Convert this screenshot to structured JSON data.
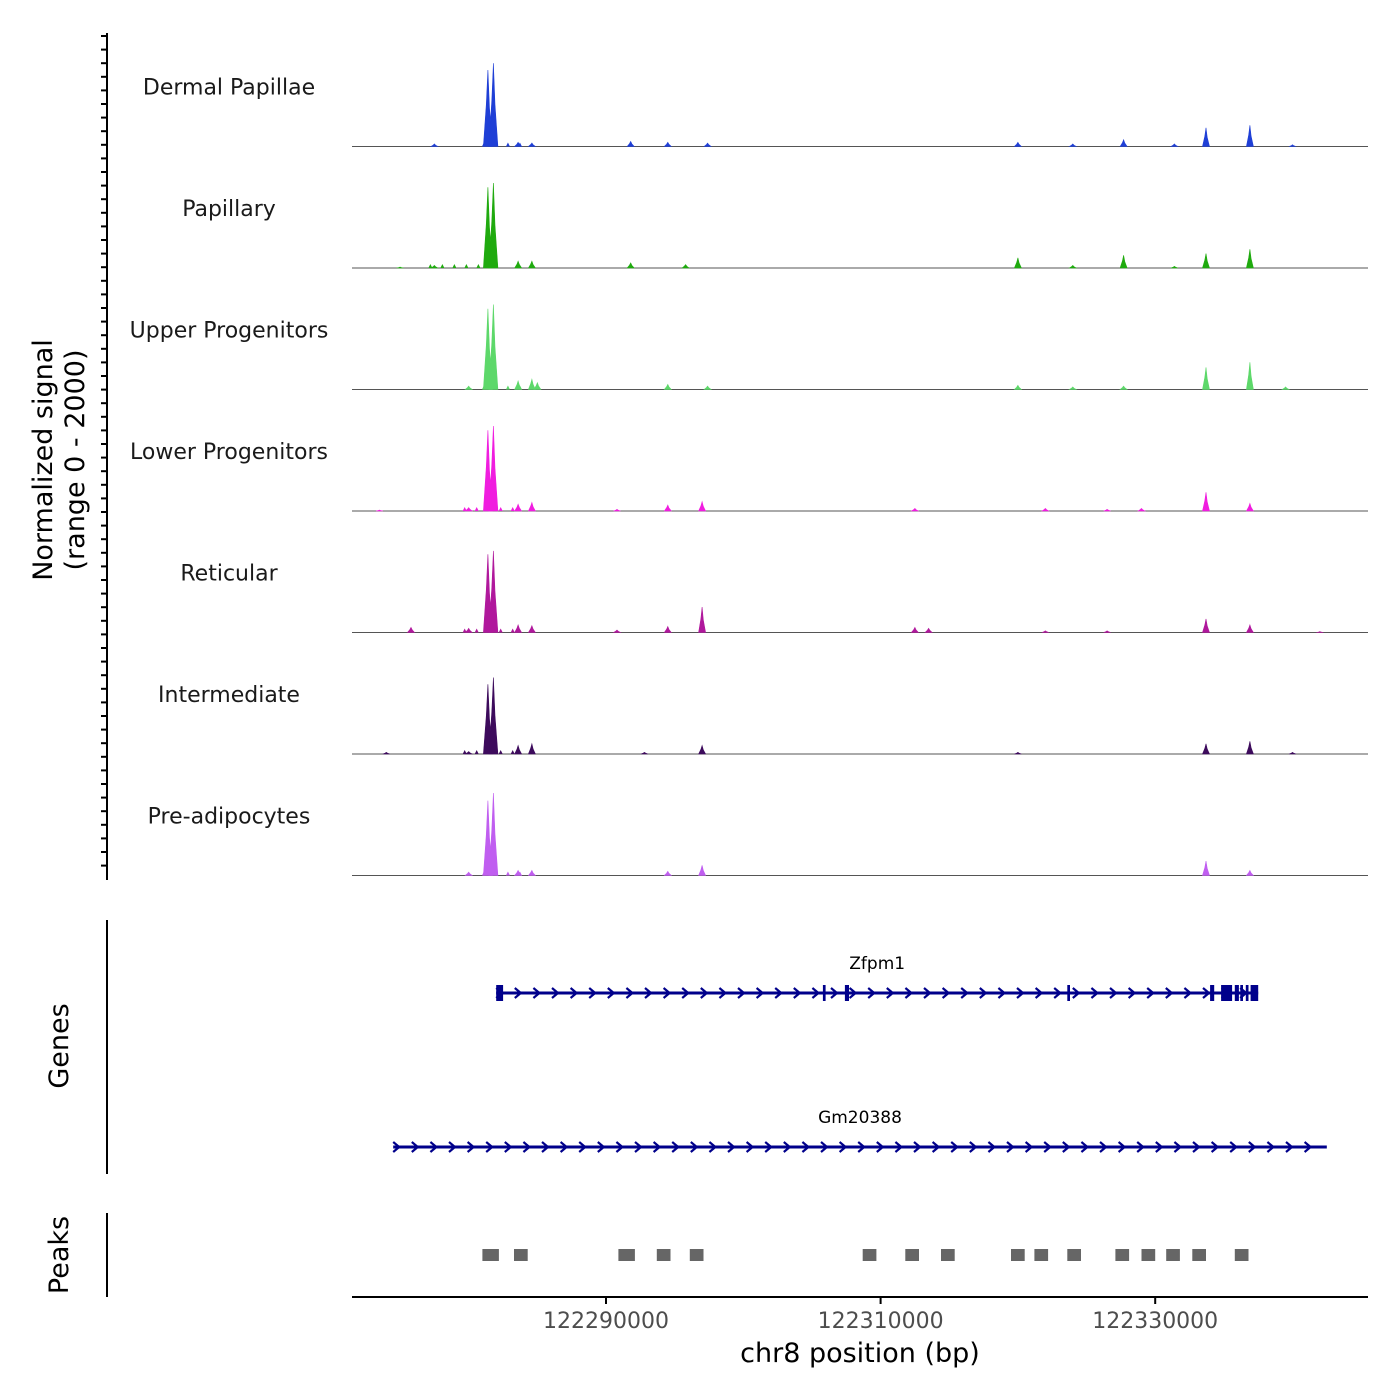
{
  "chart_data": {
    "type": "area",
    "title": "",
    "xlabel": "chr8 position (bp)",
    "ylabel_line1": "Normalized signal",
    "ylabel_line2": "(range 0 - 2000)",
    "y_range": [
      0,
      2000
    ],
    "x_range": [
      122271500,
      122345500
    ],
    "x_ticks": [
      122290000,
      122310000,
      122330000
    ],
    "x_tick_labels": [
      "122290000",
      "122310000",
      "122330000"
    ],
    "tracks": [
      {
        "name": "Dermal Papillae",
        "color": "#1f3fd6",
        "peaks": [
          [
            122277500,
            0.03
          ],
          [
            122281400,
            0.9
          ],
          [
            122281800,
            0.98
          ],
          [
            122283600,
            0.05
          ],
          [
            122284600,
            0.04
          ],
          [
            122291800,
            0.06
          ],
          [
            122294500,
            0.05
          ],
          [
            122297400,
            0.04
          ],
          [
            122320000,
            0.05
          ],
          [
            122324000,
            0.03
          ],
          [
            122327700,
            0.08
          ],
          [
            122331400,
            0.03
          ],
          [
            122333700,
            0.22
          ],
          [
            122336900,
            0.25
          ],
          [
            122340000,
            0.02
          ]
        ]
      },
      {
        "name": "Papillary",
        "color": "#1faa0e",
        "peaks": [
          [
            122275000,
            0.01
          ],
          [
            122277500,
            0.03
          ],
          [
            122281400,
            0.95
          ],
          [
            122281800,
            1.0
          ],
          [
            122283600,
            0.08
          ],
          [
            122284600,
            0.08
          ],
          [
            122291800,
            0.06
          ],
          [
            122295800,
            0.04
          ],
          [
            122320000,
            0.12
          ],
          [
            122324000,
            0.03
          ],
          [
            122327700,
            0.15
          ],
          [
            122331400,
            0.02
          ],
          [
            122333700,
            0.17
          ],
          [
            122336900,
            0.22
          ]
        ]
      },
      {
        "name": "Upper Progenitors",
        "color": "#5dd86a",
        "peaks": [
          [
            122280000,
            0.04
          ],
          [
            122281400,
            0.95
          ],
          [
            122281800,
            1.0
          ],
          [
            122283600,
            0.1
          ],
          [
            122284600,
            0.12
          ],
          [
            122285000,
            0.08
          ],
          [
            122294500,
            0.06
          ],
          [
            122297400,
            0.04
          ],
          [
            122320000,
            0.05
          ],
          [
            122324000,
            0.03
          ],
          [
            122327700,
            0.04
          ],
          [
            122333700,
            0.26
          ],
          [
            122336900,
            0.32
          ],
          [
            122339500,
            0.03
          ]
        ]
      },
      {
        "name": "Lower Progenitors",
        "color": "#f01ddf",
        "peaks": [
          [
            122273500,
            0.01
          ],
          [
            122280000,
            0.04
          ],
          [
            122281400,
            0.95
          ],
          [
            122281800,
            1.0
          ],
          [
            122283600,
            0.08
          ],
          [
            122284600,
            0.1
          ],
          [
            122290800,
            0.02
          ],
          [
            122294500,
            0.07
          ],
          [
            122297000,
            0.11
          ],
          [
            122312500,
            0.03
          ],
          [
            122322000,
            0.03
          ],
          [
            122326500,
            0.02
          ],
          [
            122329000,
            0.03
          ],
          [
            122333700,
            0.22
          ],
          [
            122336900,
            0.09
          ]
        ]
      },
      {
        "name": "Reticular",
        "color": "#b0189c",
        "peaks": [
          [
            122275800,
            0.06
          ],
          [
            122280000,
            0.05
          ],
          [
            122281400,
            0.92
          ],
          [
            122281800,
            0.96
          ],
          [
            122283600,
            0.09
          ],
          [
            122284600,
            0.08
          ],
          [
            122290800,
            0.03
          ],
          [
            122294500,
            0.07
          ],
          [
            122297000,
            0.3
          ],
          [
            122312500,
            0.06
          ],
          [
            122313500,
            0.05
          ],
          [
            122322000,
            0.02
          ],
          [
            122326500,
            0.02
          ],
          [
            122333700,
            0.16
          ],
          [
            122336900,
            0.09
          ],
          [
            122342000,
            0.01
          ]
        ]
      },
      {
        "name": "Intermediate",
        "color": "#3d0b5c",
        "peaks": [
          [
            122274000,
            0.02
          ],
          [
            122280000,
            0.03
          ],
          [
            122281400,
            0.82
          ],
          [
            122281800,
            0.9
          ],
          [
            122283600,
            0.1
          ],
          [
            122284600,
            0.12
          ],
          [
            122292800,
            0.02
          ],
          [
            122297000,
            0.1
          ],
          [
            122320000,
            0.02
          ],
          [
            122333700,
            0.12
          ],
          [
            122336900,
            0.15
          ],
          [
            122340000,
            0.02
          ]
        ]
      },
      {
        "name": "Pre-adipocytes",
        "color": "#c05ef0",
        "peaks": [
          [
            122280000,
            0.04
          ],
          [
            122281400,
            0.88
          ],
          [
            122281800,
            0.97
          ],
          [
            122283600,
            0.06
          ],
          [
            122284600,
            0.06
          ],
          [
            122294500,
            0.05
          ],
          [
            122297000,
            0.12
          ],
          [
            122333700,
            0.17
          ],
          [
            122336900,
            0.06
          ]
        ]
      }
    ],
    "genes": [
      {
        "name": "Zfpm1",
        "start": 122282000,
        "end": 122337500,
        "strand": "+",
        "exons": [
          [
            122282000,
            122282500
          ],
          [
            122305800,
            122306000
          ],
          [
            122307400,
            122307700
          ],
          [
            122323600,
            122323800
          ],
          [
            122334000,
            122334300
          ],
          [
            122334800,
            122335600
          ],
          [
            122335800,
            122336100
          ],
          [
            122336200,
            122336400
          ],
          [
            122336600,
            122336800
          ],
          [
            122336950,
            122337500
          ]
        ]
      },
      {
        "name": "Gm20388",
        "start": 122274500,
        "end": 122342500,
        "strand": "+",
        "exons": []
      }
    ],
    "peaks": [
      [
        122281000,
        122282200
      ],
      [
        122283300,
        122284300
      ],
      [
        122290900,
        122292100
      ],
      [
        122293700,
        122294700
      ],
      [
        122296100,
        122297100
      ],
      [
        122308700,
        122309700
      ],
      [
        122311800,
        122312800
      ],
      [
        122314400,
        122315400
      ],
      [
        122319500,
        122320500
      ],
      [
        122321200,
        122322200
      ],
      [
        122323600,
        122324600
      ],
      [
        122327100,
        122328100
      ],
      [
        122329000,
        122330000
      ],
      [
        122330800,
        122331800
      ],
      [
        122332700,
        122333700
      ],
      [
        122335800,
        122336800
      ]
    ],
    "panels": {
      "genes_label": "Genes",
      "peaks_label": "Peaks"
    }
  }
}
